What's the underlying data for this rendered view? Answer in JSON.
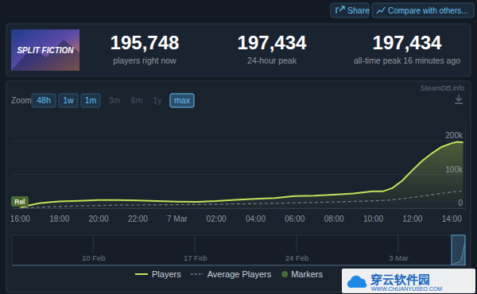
{
  "page": {
    "buttons": [
      "Share",
      "Compare with others..."
    ],
    "game_title": "SPLIT FICTION",
    "stats": [
      {
        "value": "195,748",
        "label": "players right now"
      },
      {
        "value": "197,434",
        "label": "24-hour peak"
      },
      {
        "value": "197,434",
        "label": "all-time peak 16 minutes ago"
      }
    ],
    "source": "SteamDB.info",
    "zoom": {
      "label": "Zoom",
      "options": [
        "48h",
        "1w",
        "1m",
        "3m",
        "6m",
        "1y",
        "max"
      ],
      "active": "max",
      "disabled": [
        "3m",
        "6m",
        "1y"
      ]
    },
    "watermark": {
      "title": "穿云软件园",
      "url": "WWW.CHUANYUSEO.COM"
    }
  },
  "chart_data": [
    {
      "type": "line",
      "x": [
        0,
        0.5,
        1,
        1.5,
        2,
        3,
        4,
        5,
        6,
        7,
        8,
        9,
        10,
        11,
        12,
        13,
        14,
        15,
        16,
        17,
        18,
        18.5,
        19,
        19.5,
        20,
        20.5,
        21,
        21.5,
        22,
        22.3,
        22.6
      ],
      "xlim": [
        -0.4,
        22.7
      ],
      "xticks": [
        {
          "value": 0,
          "label": "16:00"
        },
        {
          "value": 2,
          "label": "18:00"
        },
        {
          "value": 4,
          "label": "20:00"
        },
        {
          "value": 6,
          "label": "22:00"
        },
        {
          "value": 8,
          "label": "7 Mar"
        },
        {
          "value": 10,
          "label": "02:00"
        },
        {
          "value": 12,
          "label": "04:00"
        },
        {
          "value": 14,
          "label": "06:00"
        },
        {
          "value": 16,
          "label": "08:00"
        },
        {
          "value": 18,
          "label": "10:00"
        },
        {
          "value": 20,
          "label": "12:00"
        },
        {
          "value": 22,
          "label": "14:00"
        }
      ],
      "ylim": [
        0,
        260000
      ],
      "yticks": [
        0,
        {
          "value": 100000,
          "label": "100k"
        },
        {
          "value": 200000,
          "label": "200k"
        }
      ],
      "grid": true,
      "legend": "bottom",
      "series": [
        {
          "name": "Players",
          "color": "#c5e25a",
          "values": [
            0,
            9000,
            15000,
            18000,
            20000,
            22000,
            24000,
            24500,
            23000,
            21000,
            19500,
            19000,
            21000,
            25000,
            28000,
            30000,
            36000,
            37000,
            40000,
            44000,
            50000,
            50000,
            60000,
            82000,
            112000,
            140000,
            163000,
            182000,
            193000,
            197434,
            195748
          ]
        },
        {
          "name": "Average Players",
          "color": "#737d89",
          "line_style": "dashed",
          "values": [
            0,
            1500,
            3000,
            4000,
            5000,
            6500,
            8000,
            9000,
            9500,
            10000,
            10500,
            11000,
            11500,
            12500,
            13500,
            14500,
            16000,
            17000,
            18500,
            20000,
            22000,
            23000,
            25000,
            28000,
            32000,
            36000,
            40000,
            44000,
            48000,
            50000,
            51000
          ]
        }
      ],
      "annotations": {
        "name": "Markers",
        "color": "#4a6a34",
        "items": [
          {
            "x": 0,
            "text": "Rel"
          }
        ]
      }
    },
    {
      "type": "line",
      "x": [
        -5.6,
        24.66,
        24.75,
        24.9,
        25.1,
        25.3,
        25.45,
        25.55,
        25.6
      ],
      "xlim": [
        -5.6,
        25.6
      ],
      "xticks": [
        {
          "value": 0,
          "label": "10 Feb"
        },
        {
          "value": 7,
          "label": "17 Feb"
        },
        {
          "value": 14,
          "label": "24 Feb"
        },
        {
          "value": 21,
          "label": "3 Mar"
        }
      ],
      "ylim": [
        0,
        260000
      ],
      "grid": true,
      "tick_labels": "x",
      "series": [
        {
          "color": "#5a7a9a",
          "values": [
            0,
            0,
            9000,
            20000,
            24000,
            40000,
            112000,
            182000,
            195748
          ]
        }
      ]
    }
  ]
}
